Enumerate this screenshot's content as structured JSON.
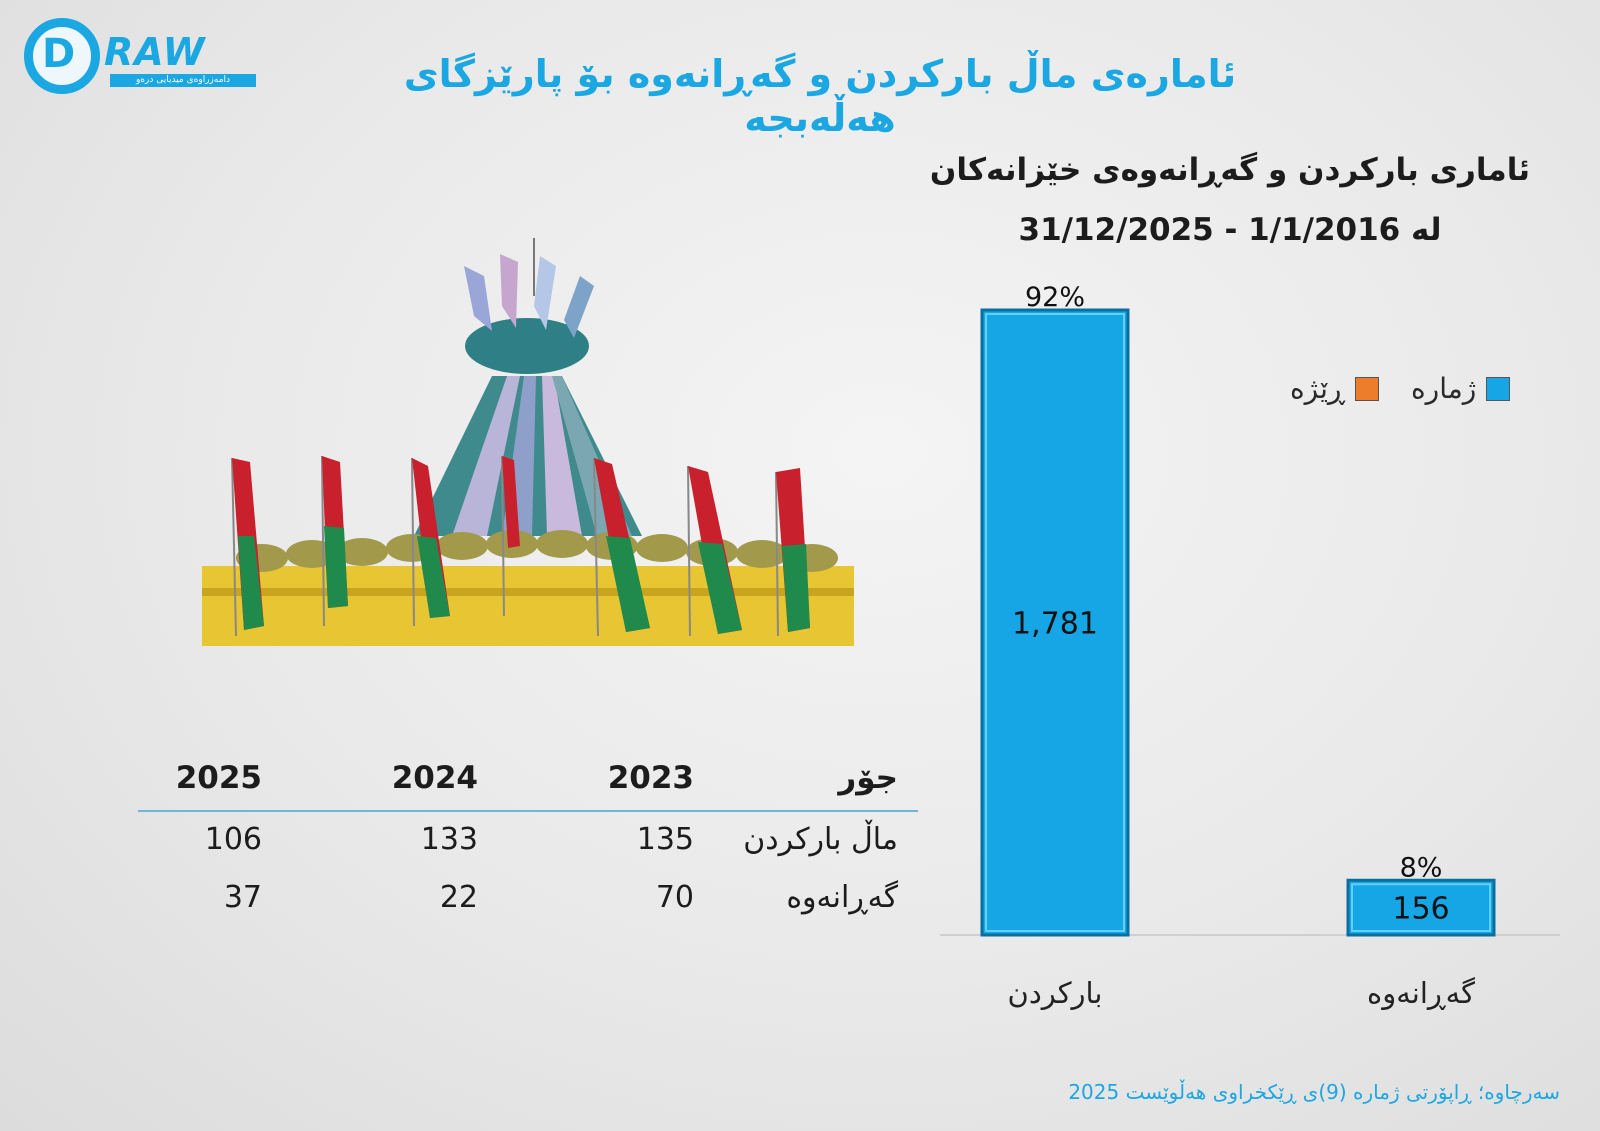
{
  "logo": {
    "word": "RAW",
    "letter": "D",
    "tagline": "دامەزراوەی میدیایی درەو"
  },
  "main_title": "ئامارەی ماڵ بارکردن و گەڕانەوە بۆ پارێزگای هەڵەبجە",
  "chart_heading": {
    "line1": "ئاماری بارکردن و گەڕانەوەی خێزانەکان",
    "line2": "لە 1/1/2016 - 31/12/2025"
  },
  "table": {
    "headers": {
      "type": "جۆر",
      "y2023": "2023",
      "y2024": "2024",
      "y2025": "2025"
    },
    "rows": [
      {
        "type": "ماڵ بارکردن",
        "y2023": "135",
        "y2024": "133",
        "y2025": "106"
      },
      {
        "type": "گەڕانەوە",
        "y2023": "70",
        "y2024": "22",
        "y2025": "37"
      }
    ]
  },
  "legend": {
    "count": "ژمارە",
    "ratio": "ڕێژە"
  },
  "colors": {
    "accent": "#1ba7e2",
    "bar": "#16a6e6",
    "ratio": "#ee7d2b",
    "title": "#1c1c1c"
  },
  "source": "سەرچاوە؛ ڕاپۆرتی ژمارە (9)ی ڕێکخراوی هەڵوێست 2025",
  "chart_data": {
    "type": "bar",
    "categories": [
      "بارکردن",
      "گەڕانەوە"
    ],
    "values": [
      1781,
      156
    ],
    "value_labels": [
      "1,781",
      "156"
    ],
    "percent_labels": [
      "92%",
      "8%"
    ],
    "percents": [
      92,
      8
    ],
    "series": [
      {
        "name": "ژمارە",
        "values": [
          1781,
          156
        ]
      },
      {
        "name": "ڕێژە",
        "values": [
          92,
          8
        ]
      }
    ],
    "ylim": [
      0,
      1781
    ],
    "grid": false,
    "legend_position": "top-right"
  }
}
